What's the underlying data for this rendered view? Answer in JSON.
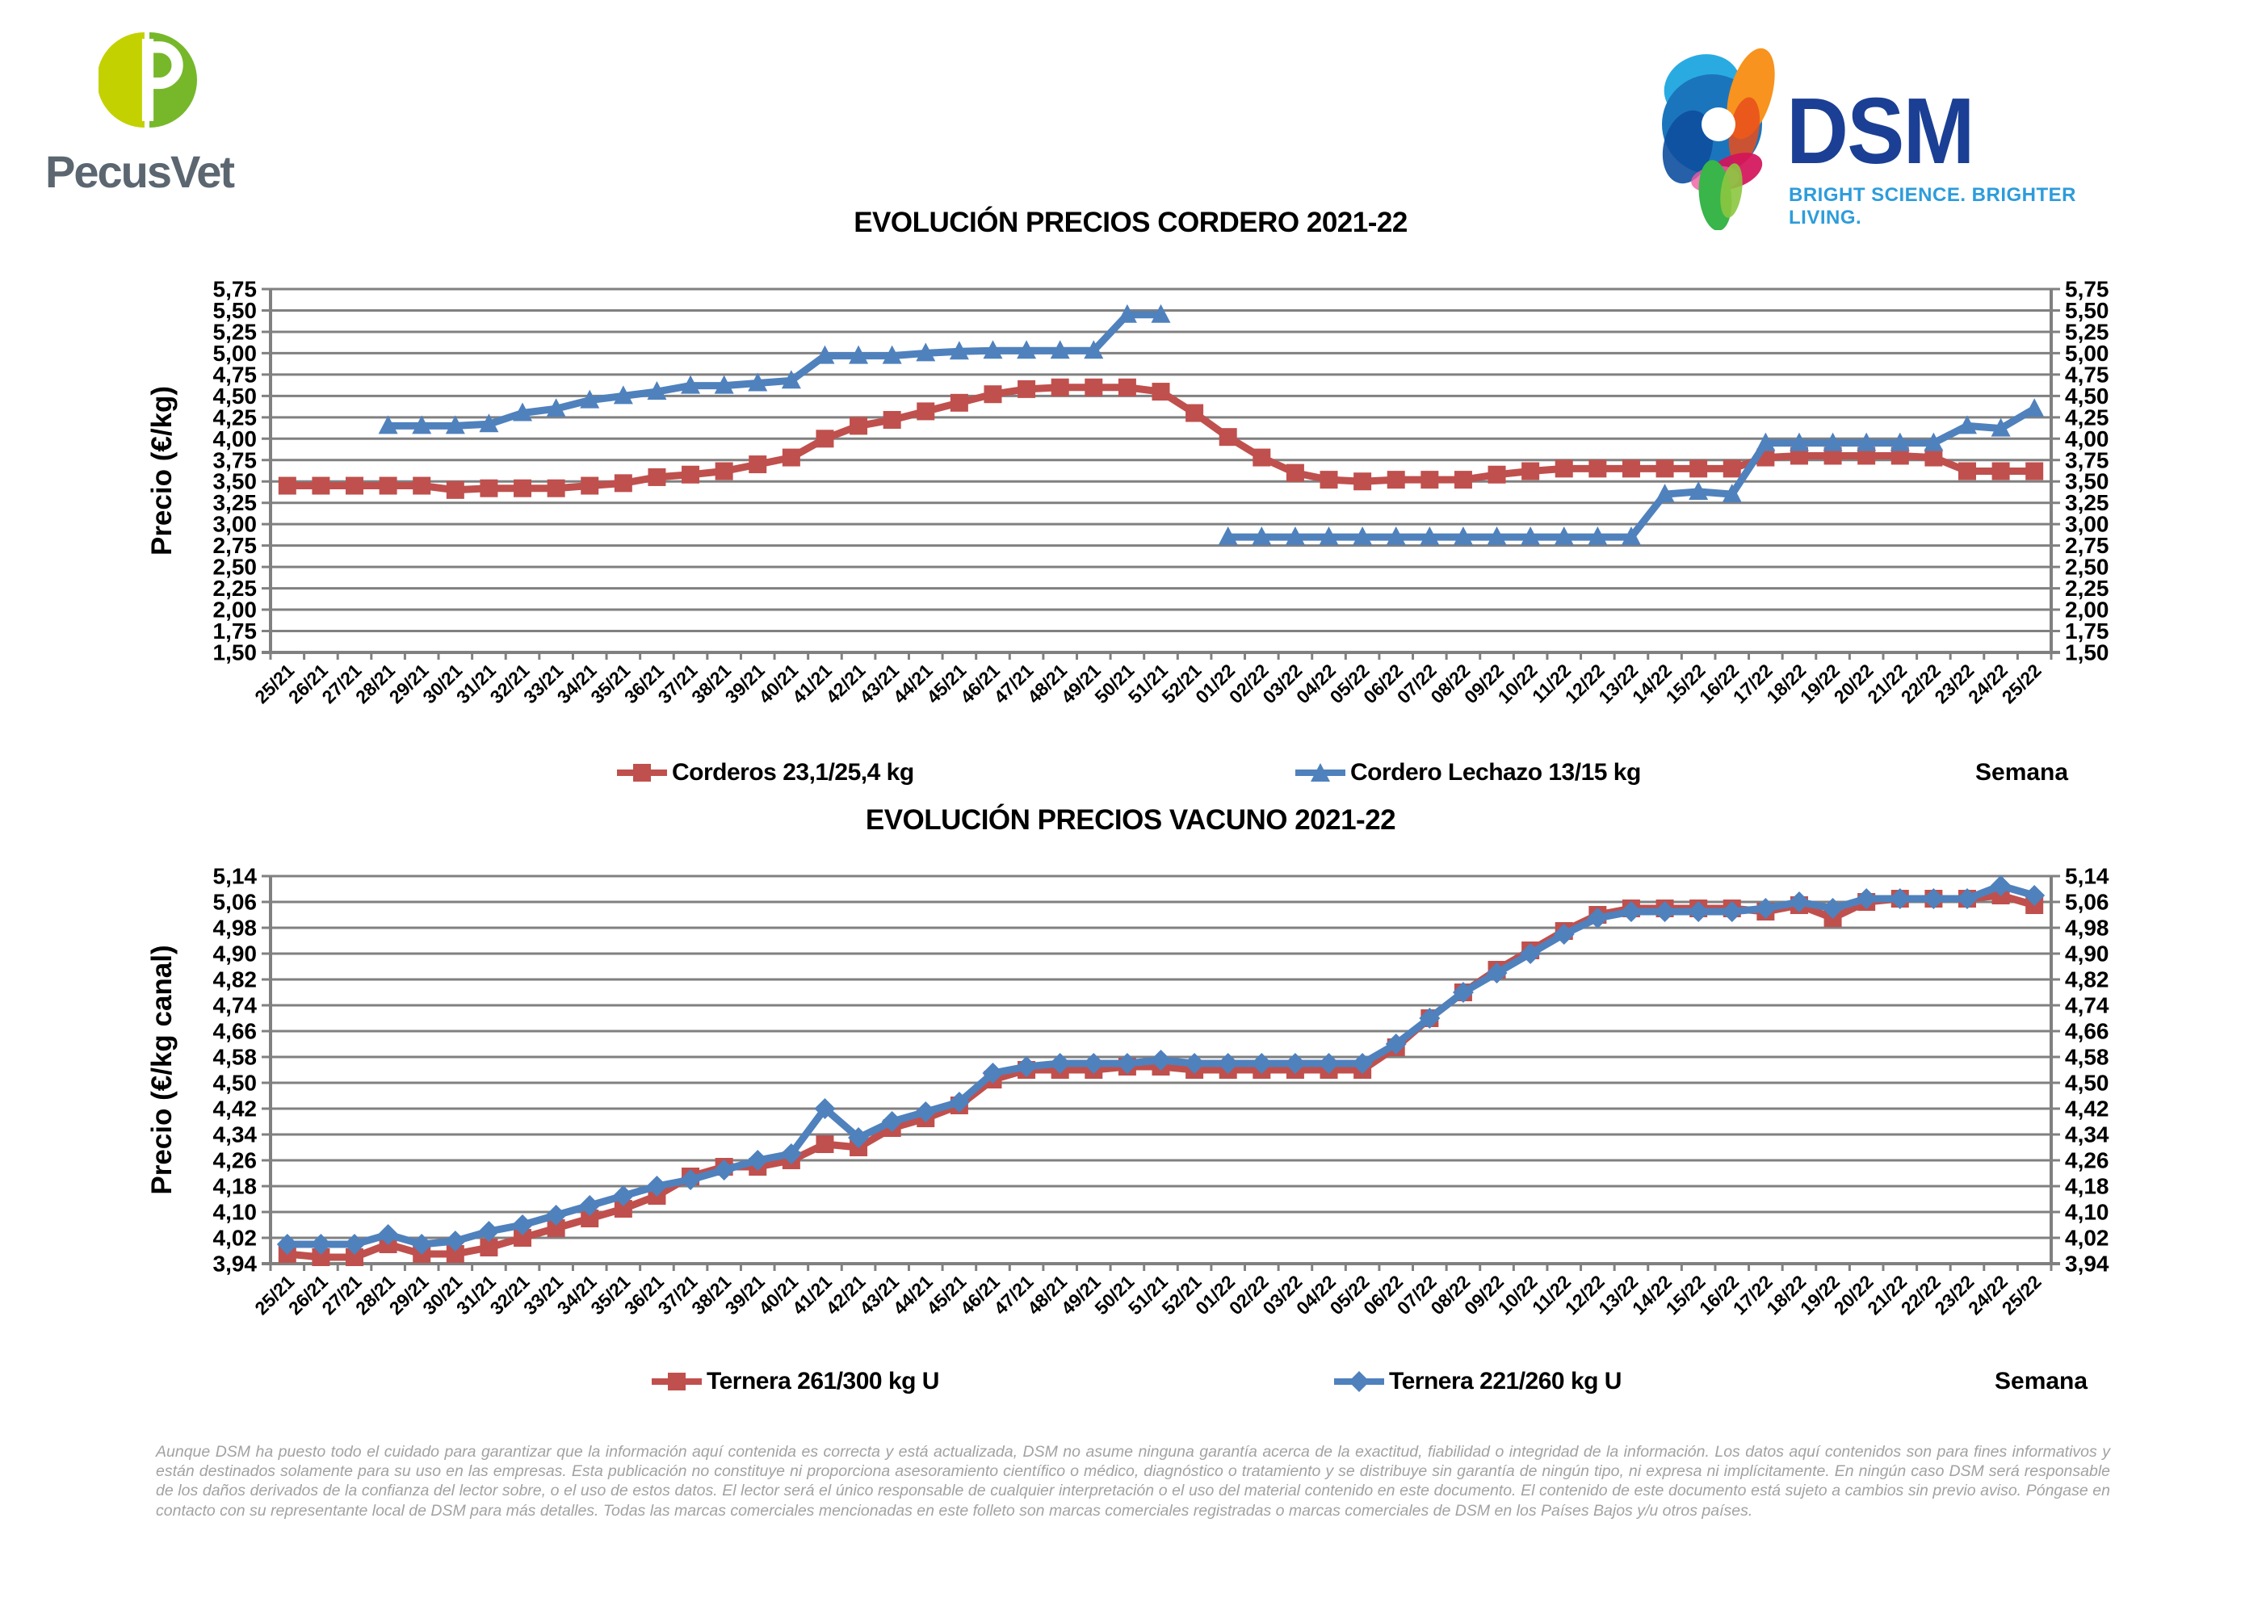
{
  "branding": {
    "pecusvet": {
      "name": "PecusVet",
      "icon_left_color": "#c3d100",
      "icon_right_color": "#76b82a",
      "text_color": "#5b6670"
    },
    "dsm": {
      "name": "DSM",
      "tagline": "BRIGHT SCIENCE. BRIGHTER LIVING.",
      "name_color": "#1b3f94",
      "tagline_color": "#2d9cdb"
    }
  },
  "chart_data": [
    {
      "type": "line",
      "title": "EVOLUCIÓN PRECIOS CORDERO 2021-22",
      "ylabel": "Precio (€/kg)",
      "xlabel": "Semana",
      "ylim": [
        1.5,
        5.75
      ],
      "ystep": 0.25,
      "grid": true,
      "legend_position": "bottom",
      "grid_color": "#808080",
      "categories": [
        "25/21",
        "26/21",
        "27/21",
        "28/21",
        "29/21",
        "30/21",
        "31/21",
        "32/21",
        "33/21",
        "34/21",
        "35/21",
        "36/21",
        "37/21",
        "38/21",
        "39/21",
        "40/21",
        "41/21",
        "42/21",
        "43/21",
        "44/21",
        "45/21",
        "46/21",
        "47/21",
        "48/21",
        "49/21",
        "50/21",
        "51/21",
        "52/21",
        "01/22",
        "02/22",
        "03/22",
        "04/22",
        "05/22",
        "06/22",
        "07/22",
        "08/22",
        "09/22",
        "10/22",
        "11/22",
        "12/22",
        "13/22",
        "14/22",
        "15/22",
        "16/22",
        "17/22",
        "18/22",
        "19/22",
        "20/22",
        "21/22",
        "22/22",
        "23/22",
        "24/22",
        "25/22"
      ],
      "series": [
        {
          "name": "Corderos 23,1/25,4 kg",
          "color": "#C0504D",
          "marker": "square",
          "values": [
            3.45,
            3.45,
            3.45,
            3.45,
            3.45,
            3.4,
            3.42,
            3.42,
            3.42,
            3.45,
            3.48,
            3.55,
            3.58,
            3.62,
            3.7,
            3.78,
            4.0,
            4.15,
            4.22,
            4.32,
            4.42,
            4.52,
            4.58,
            4.6,
            4.6,
            4.6,
            4.55,
            4.3,
            4.02,
            3.78,
            3.6,
            3.52,
            3.5,
            3.52,
            3.52,
            3.52,
            3.58,
            3.62,
            3.65,
            3.65,
            3.65,
            3.65,
            3.65,
            3.65,
            3.78,
            3.8,
            3.8,
            3.8,
            3.8,
            3.78,
            3.62,
            3.62,
            3.62
          ]
        },
        {
          "name": "Cordero Lechazo 13/15 kg",
          "color": "#4F81BD",
          "marker": "triangle",
          "values": [
            null,
            null,
            null,
            4.15,
            4.15,
            4.15,
            4.17,
            4.3,
            4.35,
            4.45,
            4.5,
            4.55,
            4.62,
            4.62,
            4.65,
            4.68,
            4.97,
            4.97,
            4.97,
            5.0,
            5.02,
            5.03,
            5.03,
            5.03,
            5.03,
            5.45,
            5.45,
            null,
            2.85,
            2.85,
            2.85,
            2.85,
            2.85,
            2.85,
            2.85,
            2.85,
            2.85,
            2.85,
            2.85,
            2.85,
            2.85,
            3.35,
            3.38,
            3.35,
            3.95,
            3.95,
            3.95,
            3.95,
            3.95,
            3.95,
            4.15,
            4.12,
            4.35
          ]
        }
      ]
    },
    {
      "type": "line",
      "title": "EVOLUCIÓN PRECIOS VACUNO 2021-22",
      "ylabel": "Precio (€/kg canal)",
      "xlabel": "Semana",
      "ylim": [
        3.94,
        5.14
      ],
      "ystep": 0.08,
      "grid": true,
      "legend_position": "bottom",
      "grid_color": "#808080",
      "categories": [
        "25/21",
        "26/21",
        "27/21",
        "28/21",
        "29/21",
        "30/21",
        "31/21",
        "32/21",
        "33/21",
        "34/21",
        "35/21",
        "36/21",
        "37/21",
        "38/21",
        "39/21",
        "40/21",
        "41/21",
        "42/21",
        "43/21",
        "44/21",
        "45/21",
        "46/21",
        "47/21",
        "48/21",
        "49/21",
        "50/21",
        "51/21",
        "52/21",
        "01/22",
        "02/22",
        "03/22",
        "04/22",
        "05/22",
        "06/22",
        "07/22",
        "08/22",
        "09/22",
        "10/22",
        "11/22",
        "12/22",
        "13/22",
        "14/22",
        "15/22",
        "16/22",
        "17/22",
        "18/22",
        "19/22",
        "20/22",
        "21/22",
        "22/22",
        "23/22",
        "24/22",
        "25/22"
      ],
      "series": [
        {
          "name": "Ternera 261/300 kg U",
          "color": "#C0504D",
          "marker": "square",
          "values": [
            3.97,
            3.96,
            3.96,
            4.0,
            3.97,
            3.97,
            3.99,
            4.02,
            4.05,
            4.08,
            4.11,
            4.15,
            4.21,
            4.24,
            4.24,
            4.26,
            4.31,
            4.3,
            4.36,
            4.39,
            4.43,
            4.51,
            4.54,
            4.54,
            4.54,
            4.55,
            4.55,
            4.54,
            4.54,
            4.54,
            4.54,
            4.54,
            4.54,
            4.61,
            4.7,
            4.78,
            4.85,
            4.91,
            4.97,
            5.02,
            5.04,
            5.04,
            5.04,
            5.04,
            5.03,
            5.05,
            5.01,
            5.06,
            5.07,
            5.07,
            5.07,
            5.08,
            5.05
          ]
        },
        {
          "name": "Ternera 221/260 kg U",
          "color": "#4F81BD",
          "marker": "diamond",
          "values": [
            4.0,
            4.0,
            4.0,
            4.03,
            4.0,
            4.01,
            4.04,
            4.06,
            4.09,
            4.12,
            4.15,
            4.18,
            4.2,
            4.23,
            4.26,
            4.28,
            4.42,
            4.33,
            4.38,
            4.41,
            4.44,
            4.53,
            4.55,
            4.56,
            4.56,
            4.56,
            4.57,
            4.56,
            4.56,
            4.56,
            4.56,
            4.56,
            4.56,
            4.62,
            4.7,
            4.78,
            4.84,
            4.9,
            4.96,
            5.01,
            5.03,
            5.03,
            5.03,
            5.03,
            5.04,
            5.06,
            5.04,
            5.07,
            5.07,
            5.07,
            5.07,
            5.11,
            5.08
          ]
        }
      ]
    }
  ],
  "disclaimer": "Aunque DSM ha puesto todo el cuidado para garantizar que la información aquí contenida es correcta y está actualizada, DSM no asume ninguna garantía acerca de la exactitud, fiabilidad o integridad de la información. Los datos aquí contenidos son para fines informativos y están destinados solamente para su uso en las empresas. Esta publicación no constituye ni proporciona asesoramiento científico o médico, diagnóstico o tratamiento y se distribuye sin garantía de ningún tipo, ni expresa ni implícitamente. En ningún caso DSM será responsable de los daños derivados de la confianza del lector sobre, o el uso de estos datos. El lector será el único responsable de cualquier interpretación o el uso del material contenido en este documento. El contenido de este documento está sujeto a cambios sin previo aviso. Póngase en contacto con su representante local de DSM para más detalles. Todas las marcas comerciales mencionadas en este folleto son marcas comerciales registradas o marcas comerciales de DSM en los Países Bajos y/u otros países."
}
